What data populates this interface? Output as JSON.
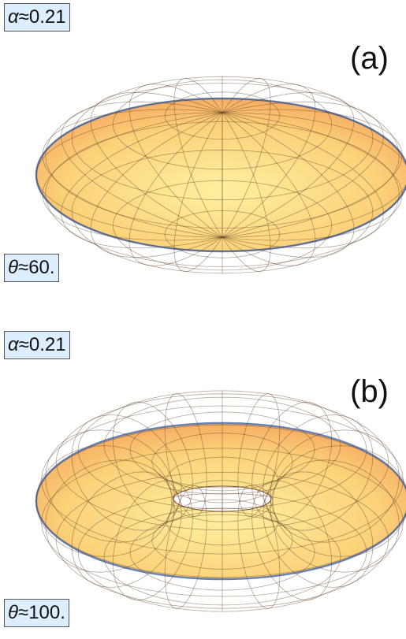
{
  "panels": [
    {
      "alpha_symbol": "α",
      "alpha_value": "≈0.21",
      "tag": "(a)",
      "theta_symbol": "θ",
      "theta_value": "≈60."
    },
    {
      "alpha_symbol": "α",
      "alpha_value": "≈0.21",
      "tag": "(b)",
      "theta_symbol": "θ",
      "theta_value": "≈100."
    }
  ]
}
